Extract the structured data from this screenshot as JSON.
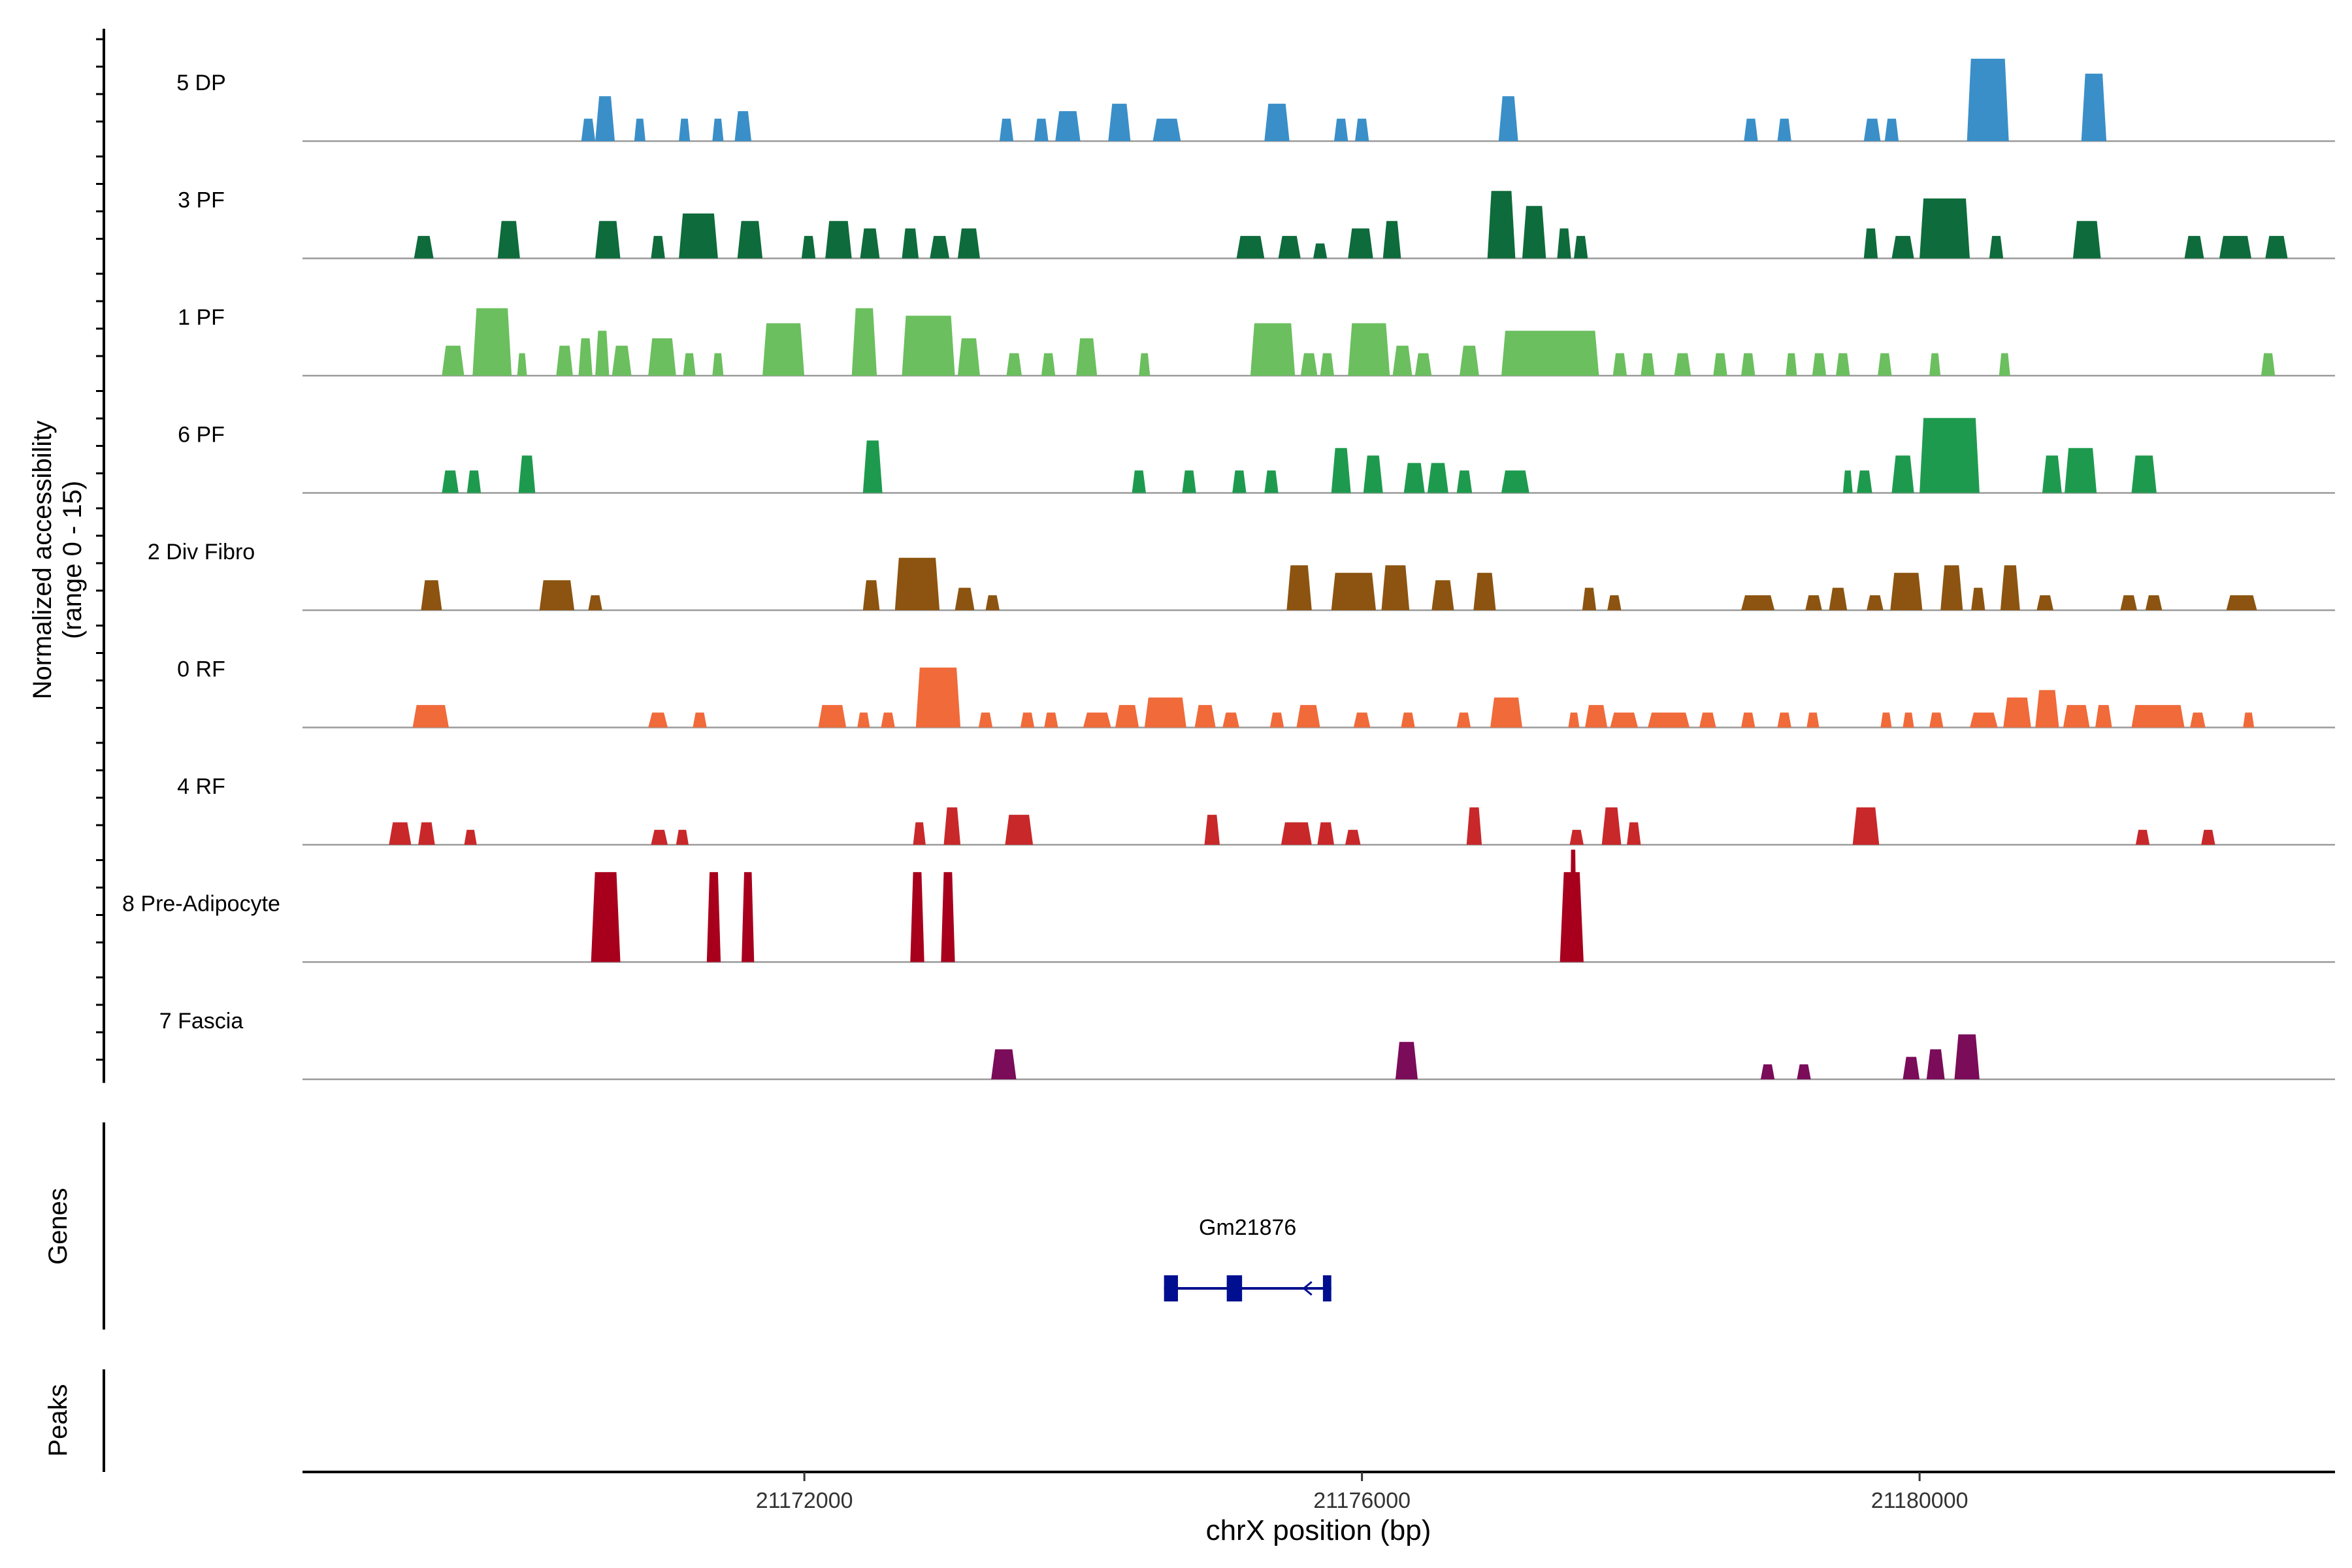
{
  "chart_data": {
    "type": "area",
    "subtype": "coverage-tracks",
    "chromosome": "chrX",
    "xlabel": "chrX position (bp)",
    "xlim": [
      21168400,
      21182980
    ],
    "xticks": [
      21172000,
      21176000,
      21180000
    ],
    "xtick_labels": [
      "21172000",
      "21176000",
      "21180000"
    ],
    "ylabel_line1": "Normalized accessibility",
    "ylabel_line2": "(range 0 - 15)",
    "ylim": [
      0,
      15
    ],
    "genes_label": "Genes",
    "peaks_label": "Peaks",
    "tracks": [
      {
        "name": "5 DP",
        "color": "#3A8FC8",
        "peaks": [
          [
            21170400,
            21170500,
            3
          ],
          [
            21170500,
            21170640,
            6
          ],
          [
            21170780,
            21170860,
            3
          ],
          [
            21171100,
            21171180,
            3
          ],
          [
            21171340,
            21171420,
            3
          ],
          [
            21171500,
            21171620,
            4
          ],
          [
            21173400,
            21173500,
            3
          ],
          [
            21173650,
            21173750,
            3
          ],
          [
            21173800,
            21173980,
            4
          ],
          [
            21174180,
            21174340,
            5
          ],
          [
            21174500,
            21174700,
            3
          ],
          [
            21175300,
            21175480,
            5
          ],
          [
            21175800,
            21175900,
            3
          ],
          [
            21175950,
            21176050,
            3
          ],
          [
            21176980,
            21177120,
            6
          ],
          [
            21178740,
            21178840,
            3
          ],
          [
            21178980,
            21179080,
            3
          ],
          [
            21179600,
            21179720,
            3
          ],
          [
            21179750,
            21179850,
            3
          ],
          [
            21180340,
            21180640,
            11
          ],
          [
            21181160,
            21181340,
            9
          ]
        ]
      },
      {
        "name": "3 PF",
        "color": "#0E6B3B",
        "peaks": [
          [
            21169200,
            21169340,
            3
          ],
          [
            21169800,
            21169960,
            5
          ],
          [
            21170500,
            21170680,
            5
          ],
          [
            21170900,
            21171000,
            3
          ],
          [
            21171100,
            21171380,
            6
          ],
          [
            21171520,
            21171700,
            5
          ],
          [
            21171980,
            21172080,
            3
          ],
          [
            21172150,
            21172340,
            5
          ],
          [
            21172400,
            21172540,
            4
          ],
          [
            21172700,
            21172820,
            4
          ],
          [
            21172900,
            21173040,
            3
          ],
          [
            21173100,
            21173260,
            4
          ],
          [
            21175100,
            21175300,
            3
          ],
          [
            21175400,
            21175560,
            3
          ],
          [
            21175650,
            21175750,
            2
          ],
          [
            21175900,
            21176080,
            4
          ],
          [
            21176150,
            21176280,
            5
          ],
          [
            21176900,
            21177100,
            9
          ],
          [
            21177150,
            21177320,
            7
          ],
          [
            21177400,
            21177500,
            4
          ],
          [
            21177520,
            21177620,
            3
          ],
          [
            21179600,
            21179700,
            4
          ],
          [
            21179800,
            21179960,
            3
          ],
          [
            21180000,
            21180360,
            8
          ],
          [
            21180500,
            21180600,
            3
          ],
          [
            21181100,
            21181300,
            5
          ],
          [
            21181900,
            21182040,
            3
          ],
          [
            21182150,
            21182380,
            3
          ],
          [
            21182480,
            21182640,
            3
          ]
        ]
      },
      {
        "name": "1 PF",
        "color": "#6BBF5E",
        "peaks": [
          [
            21169400,
            21169560,
            4
          ],
          [
            21169620,
            21169900,
            9
          ],
          [
            21169940,
            21170010,
            3
          ],
          [
            21170220,
            21170340,
            4
          ],
          [
            21170380,
            21170480,
            5
          ],
          [
            21170500,
            21170600,
            6
          ],
          [
            21170620,
            21170760,
            4
          ],
          [
            21170880,
            21171080,
            5
          ],
          [
            21171130,
            21171220,
            3
          ],
          [
            21171340,
            21171420,
            3
          ],
          [
            21171700,
            21172000,
            7
          ],
          [
            21172340,
            21172520,
            9
          ],
          [
            21172700,
            21173080,
            8
          ],
          [
            21173100,
            21173260,
            5
          ],
          [
            21173450,
            21173560,
            3
          ],
          [
            21173700,
            21173800,
            3
          ],
          [
            21173950,
            21174100,
            5
          ],
          [
            21174400,
            21174480,
            3
          ],
          [
            21175200,
            21175520,
            7
          ],
          [
            21175560,
            21175680,
            3
          ],
          [
            21175700,
            21175800,
            3
          ],
          [
            21175900,
            21176200,
            7
          ],
          [
            21176220,
            21176360,
            4
          ],
          [
            21176380,
            21176500,
            3
          ],
          [
            21176700,
            21176840,
            4
          ],
          [
            21177000,
            21177700,
            6
          ],
          [
            21177800,
            21177900,
            3
          ],
          [
            21178000,
            21178100,
            3
          ],
          [
            21178240,
            21178360,
            3
          ],
          [
            21178520,
            21178620,
            3
          ],
          [
            21178720,
            21178820,
            3
          ],
          [
            21179040,
            21179120,
            3
          ],
          [
            21179230,
            21179330,
            3
          ],
          [
            21179400,
            21179500,
            3
          ],
          [
            21179700,
            21179800,
            3
          ],
          [
            21180070,
            21180150,
            3
          ],
          [
            21180570,
            21180650,
            3
          ],
          [
            21182450,
            21182550,
            3
          ]
        ]
      },
      {
        "name": "6 PF",
        "color": "#1E9A4E",
        "peaks": [
          [
            21169400,
            21169520,
            3
          ],
          [
            21169580,
            21169680,
            3
          ],
          [
            21169950,
            21170070,
            5
          ],
          [
            21172420,
            21172560,
            7
          ],
          [
            21174350,
            21174450,
            3
          ],
          [
            21174710,
            21174810,
            3
          ],
          [
            21175070,
            21175170,
            3
          ],
          [
            21175300,
            21175400,
            3
          ],
          [
            21175780,
            21175920,
            6
          ],
          [
            21176010,
            21176150,
            5
          ],
          [
            21176300,
            21176450,
            4
          ],
          [
            21176470,
            21176620,
            4
          ],
          [
            21176680,
            21176790,
            3
          ],
          [
            21177000,
            21177200,
            3
          ],
          [
            21179450,
            21179520,
            3
          ],
          [
            21179550,
            21179660,
            3
          ],
          [
            21179800,
            21179960,
            5
          ],
          [
            21180000,
            21180430,
            10
          ],
          [
            21180880,
            21181020,
            5
          ],
          [
            21181040,
            21181270,
            6
          ],
          [
            21181520,
            21181700,
            5
          ]
        ]
      },
      {
        "name": "2 Div Fibro",
        "color": "#8C5410",
        "peaks": [
          [
            21169250,
            21169400,
            4
          ],
          [
            21170100,
            21170350,
            4
          ],
          [
            21170450,
            21170550,
            2
          ],
          [
            21172420,
            21172540,
            4
          ],
          [
            21172650,
            21172970,
            7
          ],
          [
            21173080,
            21173220,
            3
          ],
          [
            21173300,
            21173400,
            2
          ],
          [
            21175460,
            21175640,
            6
          ],
          [
            21175780,
            21176100,
            5
          ],
          [
            21176140,
            21176340,
            6
          ],
          [
            21176500,
            21176660,
            4
          ],
          [
            21176800,
            21176960,
            5
          ],
          [
            21177580,
            21177680,
            3
          ],
          [
            21177760,
            21177860,
            2
          ],
          [
            21178720,
            21178960,
            2
          ],
          [
            21179180,
            21179300,
            2
          ],
          [
            21179350,
            21179480,
            3
          ],
          [
            21179620,
            21179740,
            2
          ],
          [
            21179790,
            21180020,
            5
          ],
          [
            21180150,
            21180310,
            6
          ],
          [
            21180370,
            21180470,
            3
          ],
          [
            21180580,
            21180720,
            6
          ],
          [
            21180840,
            21180960,
            2
          ],
          [
            21181440,
            21181560,
            2
          ],
          [
            21181620,
            21181740,
            2
          ],
          [
            21182200,
            21182420,
            2
          ]
        ]
      },
      {
        "name": "0 RF",
        "color": "#F06A3A",
        "peaks": [
          [
            21169190,
            21169450,
            3
          ],
          [
            21170880,
            21171020,
            2
          ],
          [
            21171200,
            21171300,
            2
          ],
          [
            21172100,
            21172300,
            3
          ],
          [
            21172380,
            21172470,
            2
          ],
          [
            21172550,
            21172650,
            2
          ],
          [
            21172800,
            21173120,
            8
          ],
          [
            21173250,
            21173350,
            2
          ],
          [
            21173550,
            21173650,
            2
          ],
          [
            21173720,
            21173820,
            2
          ],
          [
            21174000,
            21174200,
            2
          ],
          [
            21174230,
            21174400,
            3
          ],
          [
            21174440,
            21174740,
            4
          ],
          [
            21174800,
            21174950,
            3
          ],
          [
            21175000,
            21175120,
            2
          ],
          [
            21175340,
            21175440,
            2
          ],
          [
            21175530,
            21175700,
            3
          ],
          [
            21175940,
            21176060,
            2
          ],
          [
            21176280,
            21176380,
            2
          ],
          [
            21176680,
            21176780,
            2
          ],
          [
            21176920,
            21177150,
            4
          ],
          [
            21177480,
            21177560,
            2
          ],
          [
            21177600,
            21177760,
            3
          ],
          [
            21177780,
            21177980,
            2
          ],
          [
            21178050,
            21178350,
            2
          ],
          [
            21178420,
            21178540,
            2
          ],
          [
            21178720,
            21178820,
            2
          ],
          [
            21178980,
            21179080,
            2
          ],
          [
            21179190,
            21179280,
            2
          ],
          [
            21179720,
            21179800,
            2
          ],
          [
            21179880,
            21179960,
            2
          ],
          [
            21180070,
            21180170,
            2
          ],
          [
            21180360,
            21180560,
            2
          ],
          [
            21180600,
            21180800,
            4
          ],
          [
            21180830,
            21181000,
            5
          ],
          [
            21181030,
            21181220,
            3
          ],
          [
            21181260,
            21181380,
            3
          ],
          [
            21181520,
            21181900,
            3
          ],
          [
            21181940,
            21182050,
            2
          ],
          [
            21182320,
            21182400,
            2
          ]
        ]
      },
      {
        "name": "4 RF",
        "color": "#C8282A",
        "peaks": [
          [
            21169020,
            21169180,
            3
          ],
          [
            21169230,
            21169350,
            3
          ],
          [
            21169560,
            21169650,
            2
          ],
          [
            21170900,
            21171020,
            2
          ],
          [
            21171080,
            21171170,
            2
          ],
          [
            21172780,
            21172870,
            3
          ],
          [
            21173000,
            21173120,
            5
          ],
          [
            21173440,
            21173640,
            4
          ],
          [
            21174870,
            21174980,
            4
          ],
          [
            21175420,
            21175640,
            3
          ],
          [
            21175680,
            21175800,
            3
          ],
          [
            21175880,
            21175990,
            2
          ],
          [
            21176750,
            21176860,
            5
          ],
          [
            21177490,
            21177590,
            2
          ],
          [
            21177720,
            21177860,
            5
          ],
          [
            21177900,
            21178000,
            3
          ],
          [
            21179520,
            21179710,
            5
          ],
          [
            21181550,
            21181650,
            2
          ],
          [
            21182020,
            21182120,
            2
          ]
        ]
      },
      {
        "name": "8 Pre-Adipocyte",
        "color": "#A8001C",
        "peaks": [
          [
            21170470,
            21170680,
            12
          ],
          [
            21171300,
            21171400,
            12
          ],
          [
            21171550,
            21171640,
            12
          ],
          [
            21172760,
            21172860,
            12
          ],
          [
            21172980,
            21173080,
            12
          ],
          [
            21177420,
            21177590,
            12
          ],
          [
            21177490,
            21177540,
            15
          ]
        ]
      },
      {
        "name": "7 Fascia",
        "color": "#7A0C5A",
        "peaks": [
          [
            21173340,
            21173520,
            4
          ],
          [
            21176240,
            21176400,
            5
          ],
          [
            21178860,
            21178960,
            2
          ],
          [
            21179120,
            21179220,
            2
          ],
          [
            21179880,
            21180000,
            3
          ],
          [
            21180050,
            21180180,
            4
          ],
          [
            21180250,
            21180430,
            6
          ]
        ]
      }
    ],
    "genes": [
      {
        "name": "Gm21876",
        "start": 21174580,
        "end": 21175780,
        "strand": "-",
        "exons": [
          [
            21174580,
            21174680
          ],
          [
            21175030,
            21175140
          ],
          [
            21175720,
            21175780
          ]
        ],
        "color": "#000F8F"
      }
    ],
    "peaks_track": []
  }
}
